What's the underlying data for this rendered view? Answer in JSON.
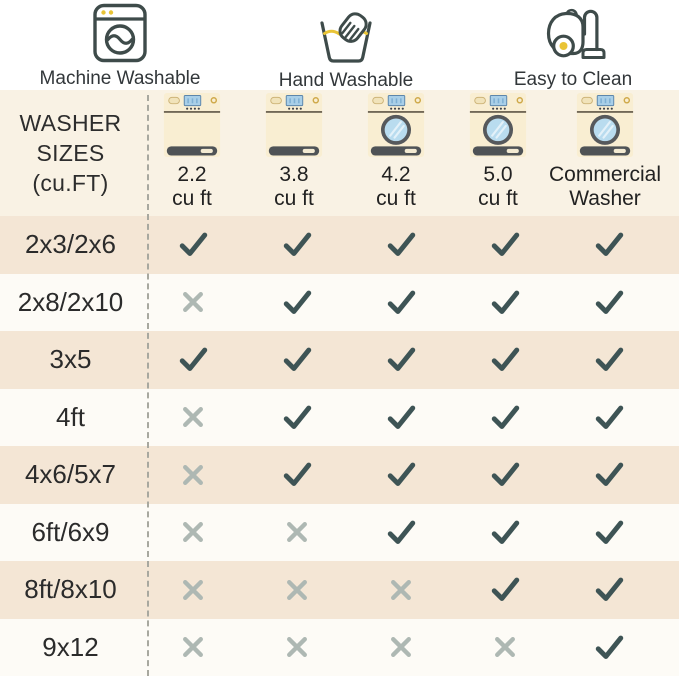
{
  "legend": {
    "items": [
      {
        "label": "Machine Washable"
      },
      {
        "label": "Hand Washable"
      },
      {
        "label": "Easy to Clean"
      }
    ]
  },
  "table": {
    "corner_lines": [
      "WASHER",
      "SIZES",
      "(cu.FT)"
    ],
    "columns": [
      {
        "line1": "2.2",
        "line2": "cu ft",
        "washer": "top-load"
      },
      {
        "line1": "3.8",
        "line2": "cu ft",
        "washer": "top-load"
      },
      {
        "line1": "4.2",
        "line2": "cu ft",
        "washer": "front-load"
      },
      {
        "line1": "5.0",
        "line2": "cu ft",
        "washer": "front-load"
      },
      {
        "line1": "Commercial",
        "line2": "Washer",
        "washer": "front-load"
      }
    ],
    "rows": [
      {
        "label": "2x3/2x6",
        "values": [
          "check",
          "check",
          "check",
          "check",
          "check"
        ]
      },
      {
        "label": "2x8/2x10",
        "values": [
          "x",
          "check",
          "check",
          "check",
          "check"
        ]
      },
      {
        "label": "3x5",
        "values": [
          "check",
          "check",
          "check",
          "check",
          "check"
        ]
      },
      {
        "label": "4ft",
        "values": [
          "x",
          "check",
          "check",
          "check",
          "check"
        ]
      },
      {
        "label": "4x6/5x7",
        "values": [
          "x",
          "check",
          "check",
          "check",
          "check"
        ]
      },
      {
        "label": "6ft/6x9",
        "values": [
          "x",
          "x",
          "check",
          "check",
          "check"
        ]
      },
      {
        "label": "8ft/8x10",
        "values": [
          "x",
          "x",
          "x",
          "check",
          "check"
        ]
      },
      {
        "label": "9x12",
        "values": [
          "x",
          "x",
          "x",
          "x",
          "check"
        ]
      }
    ],
    "colors": {
      "check": "#3e5455",
      "x": "#aeb8b3",
      "accent_yellow": "#e9c436",
      "row_tan": "#f4e6d5",
      "row_white": "#fdfbf6",
      "header_bg": "#f9f2e4",
      "icon_outline": "#3e4b4a"
    }
  },
  "chart_data": {
    "type": "table",
    "row_header": "WASHER SIZES (cu.FT)",
    "columns": [
      "2.2 cu ft",
      "3.8 cu ft",
      "4.2 cu ft",
      "5.0 cu ft",
      "Commercial Washer"
    ],
    "rows": [
      "2x3/2x6",
      "2x8/2x10",
      "3x5",
      "4ft",
      "4x6/5x7",
      "6ft/6x9",
      "8ft/8x10",
      "9x12"
    ],
    "values": [
      [
        1,
        1,
        1,
        1,
        1
      ],
      [
        0,
        1,
        1,
        1,
        1
      ],
      [
        1,
        1,
        1,
        1,
        1
      ],
      [
        0,
        1,
        1,
        1,
        1
      ],
      [
        0,
        1,
        1,
        1,
        1
      ],
      [
        0,
        0,
        1,
        1,
        1
      ],
      [
        0,
        0,
        0,
        1,
        1
      ],
      [
        0,
        0,
        0,
        0,
        1
      ]
    ],
    "badges": [
      "Machine Washable",
      "Hand Washable",
      "Easy to Clean"
    ]
  }
}
